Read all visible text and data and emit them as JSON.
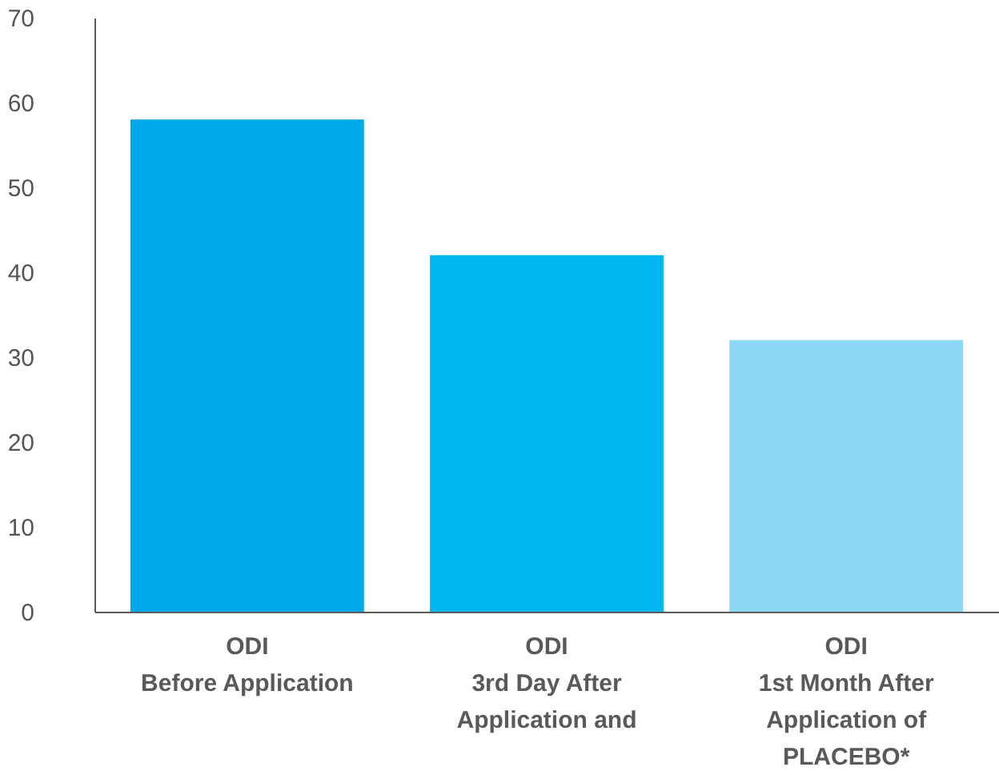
{
  "chart_data": {
    "type": "bar",
    "categories": [
      "ODI\nBefore Application",
      "ODI\n3rd Day After\nApplication and",
      "ODI\n1st Month After\nApplication of\nPLACEBO*"
    ],
    "values": [
      58,
      42,
      32
    ],
    "colors": [
      "#00a7e9",
      "#00b8ef",
      "#8dd8f6"
    ],
    "ylim": [
      0,
      70
    ],
    "yticks": [
      0,
      10,
      20,
      30,
      40,
      50,
      60,
      70
    ],
    "grid": false
  }
}
